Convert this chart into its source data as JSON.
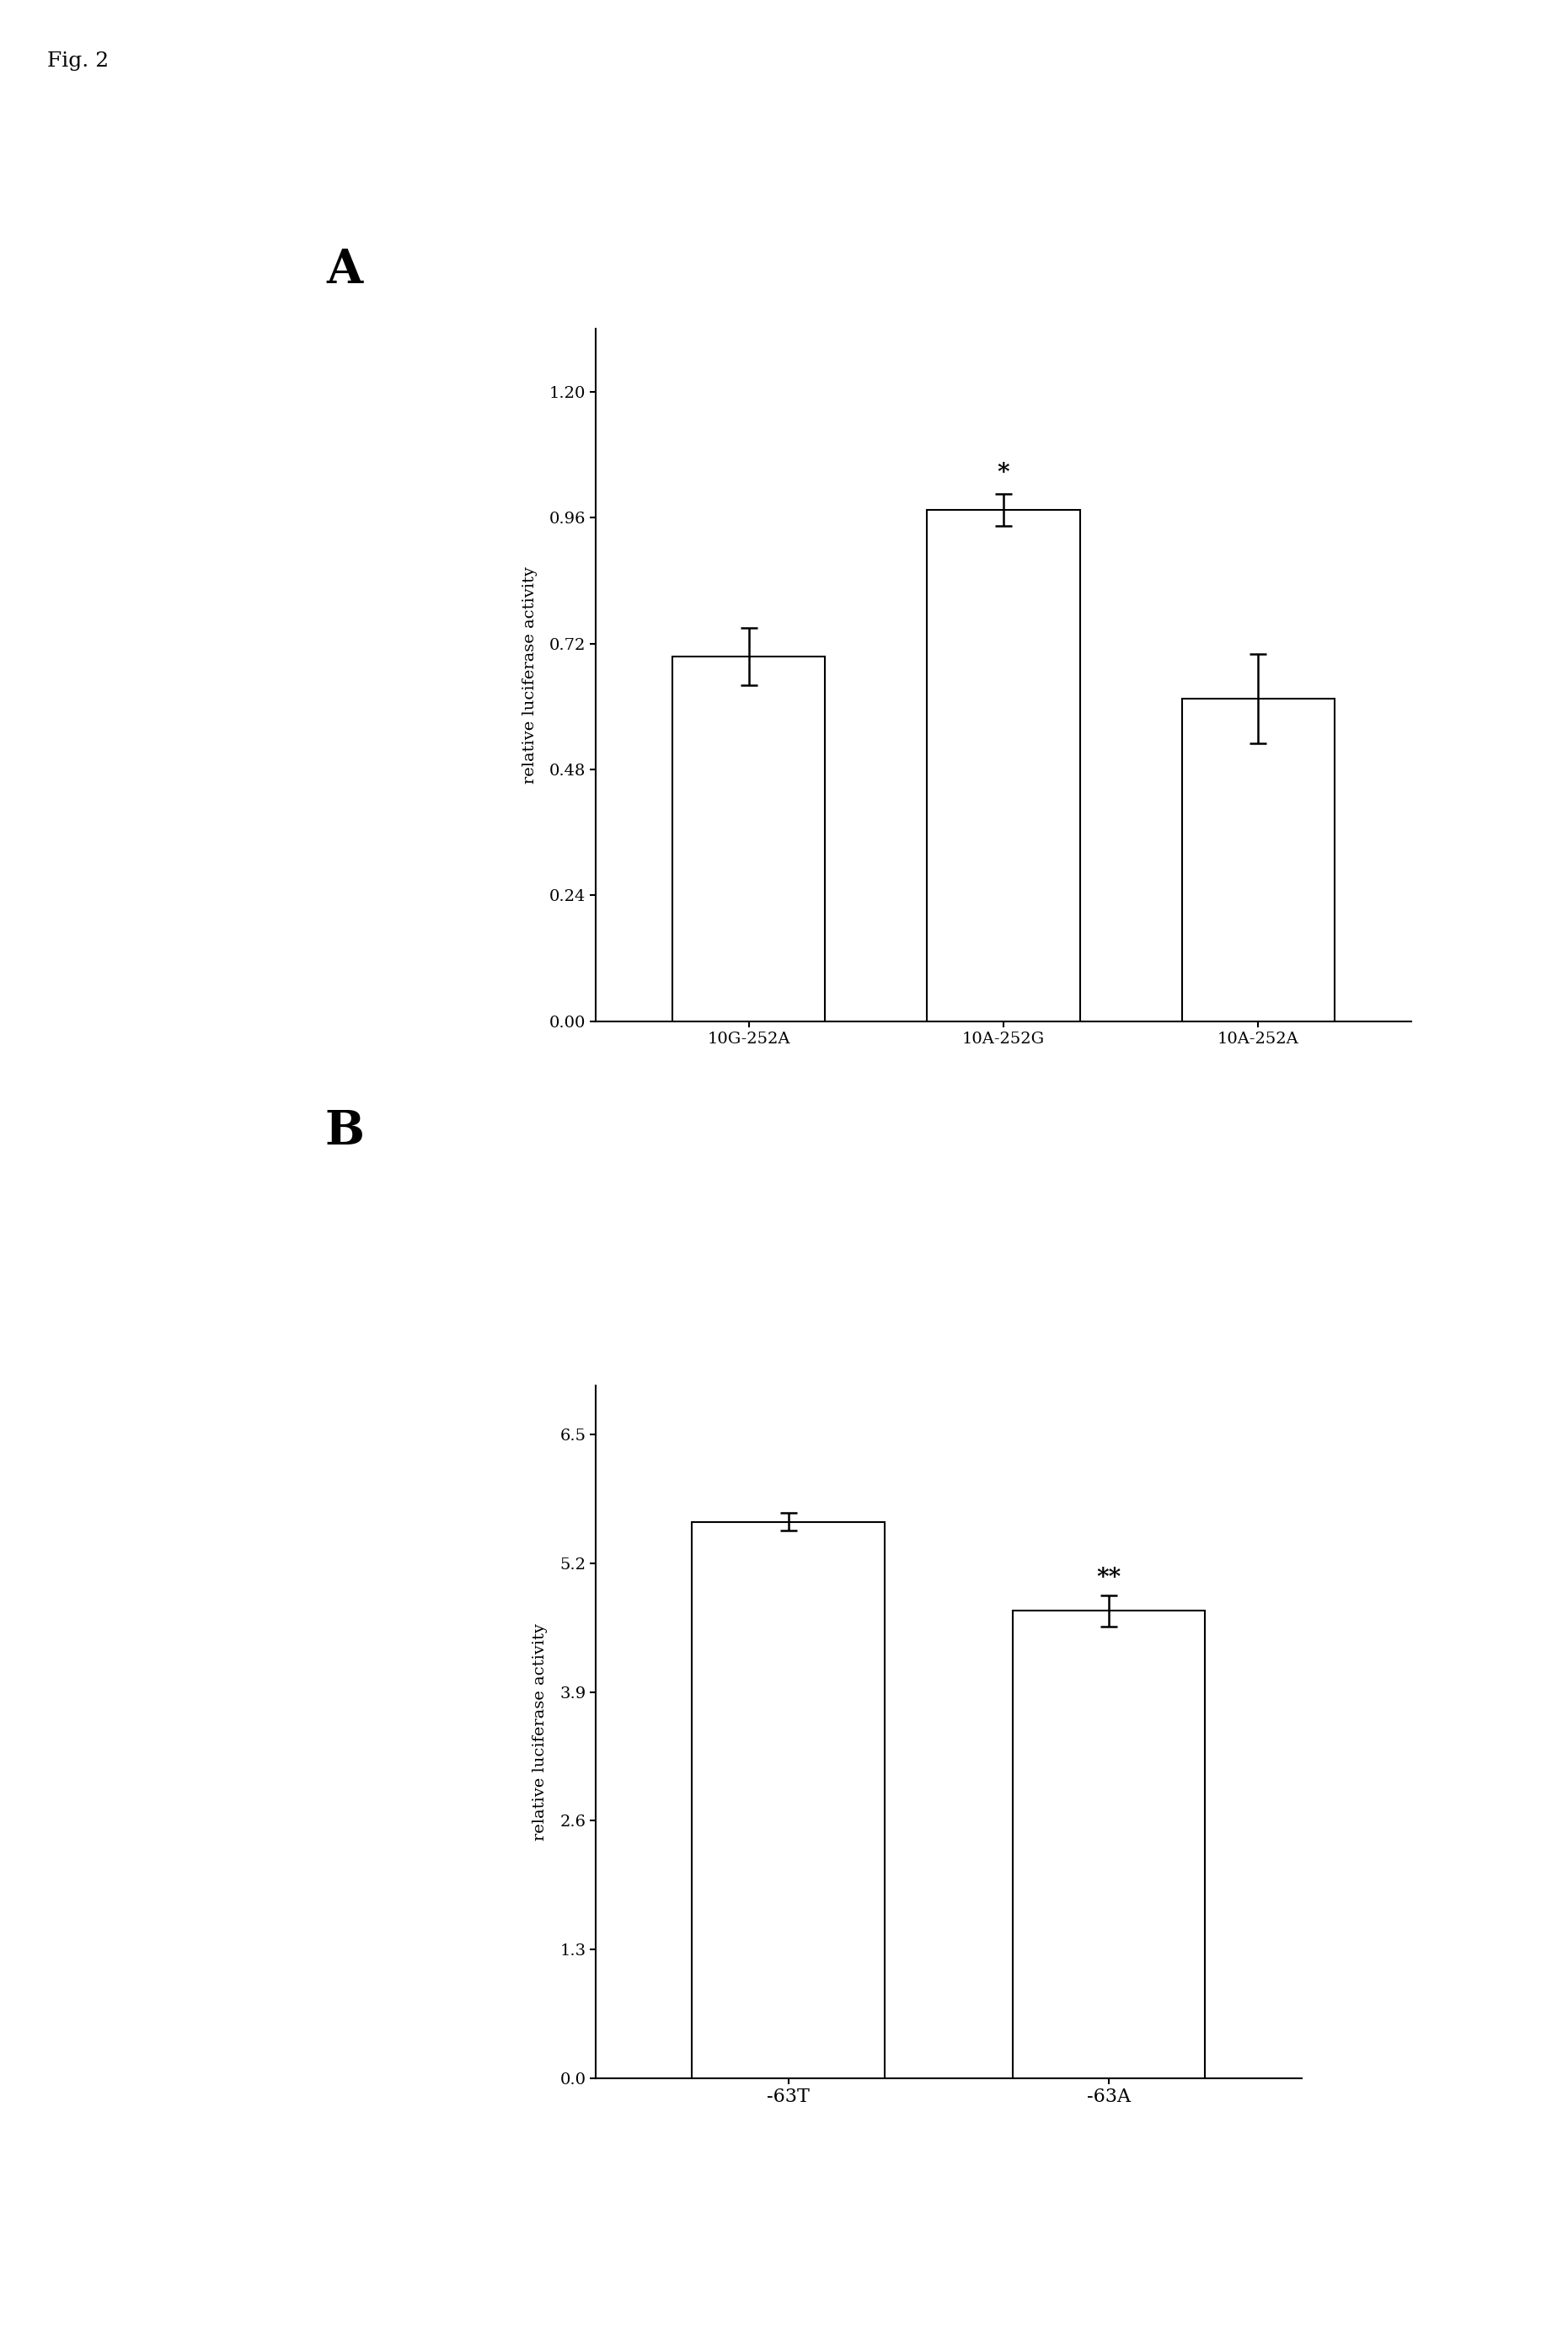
{
  "fig_label": "Fig. 2",
  "panel_A": {
    "label": "A",
    "categories": [
      "10G-252A",
      "10A-252G",
      "10A-252A"
    ],
    "values": [
      0.695,
      0.975,
      0.615
    ],
    "errors": [
      0.055,
      0.03,
      0.085
    ],
    "annotations": [
      "",
      "*",
      ""
    ],
    "ylabel": "relative luciferase activity",
    "yticks": [
      0.0,
      0.24,
      0.48,
      0.72,
      0.96,
      1.2
    ],
    "ylim": [
      0,
      1.32
    ],
    "bar_color": "#ffffff",
    "bar_edgecolor": "#000000"
  },
  "panel_B": {
    "label": "B",
    "categories": [
      "-63T",
      "-63A"
    ],
    "values": [
      5.62,
      4.72
    ],
    "errors": [
      0.09,
      0.16
    ],
    "annotations": [
      "",
      "**"
    ],
    "ylabel": "relative luciferase activity",
    "yticks": [
      0.0,
      1.3,
      2.6,
      3.9,
      5.2,
      6.5
    ],
    "ylim": [
      0,
      7.0
    ],
    "bar_color": "#ffffff",
    "bar_edgecolor": "#000000"
  },
  "background_color": "#ffffff",
  "text_color": "#000000",
  "font_family": "DejaVu Serif"
}
